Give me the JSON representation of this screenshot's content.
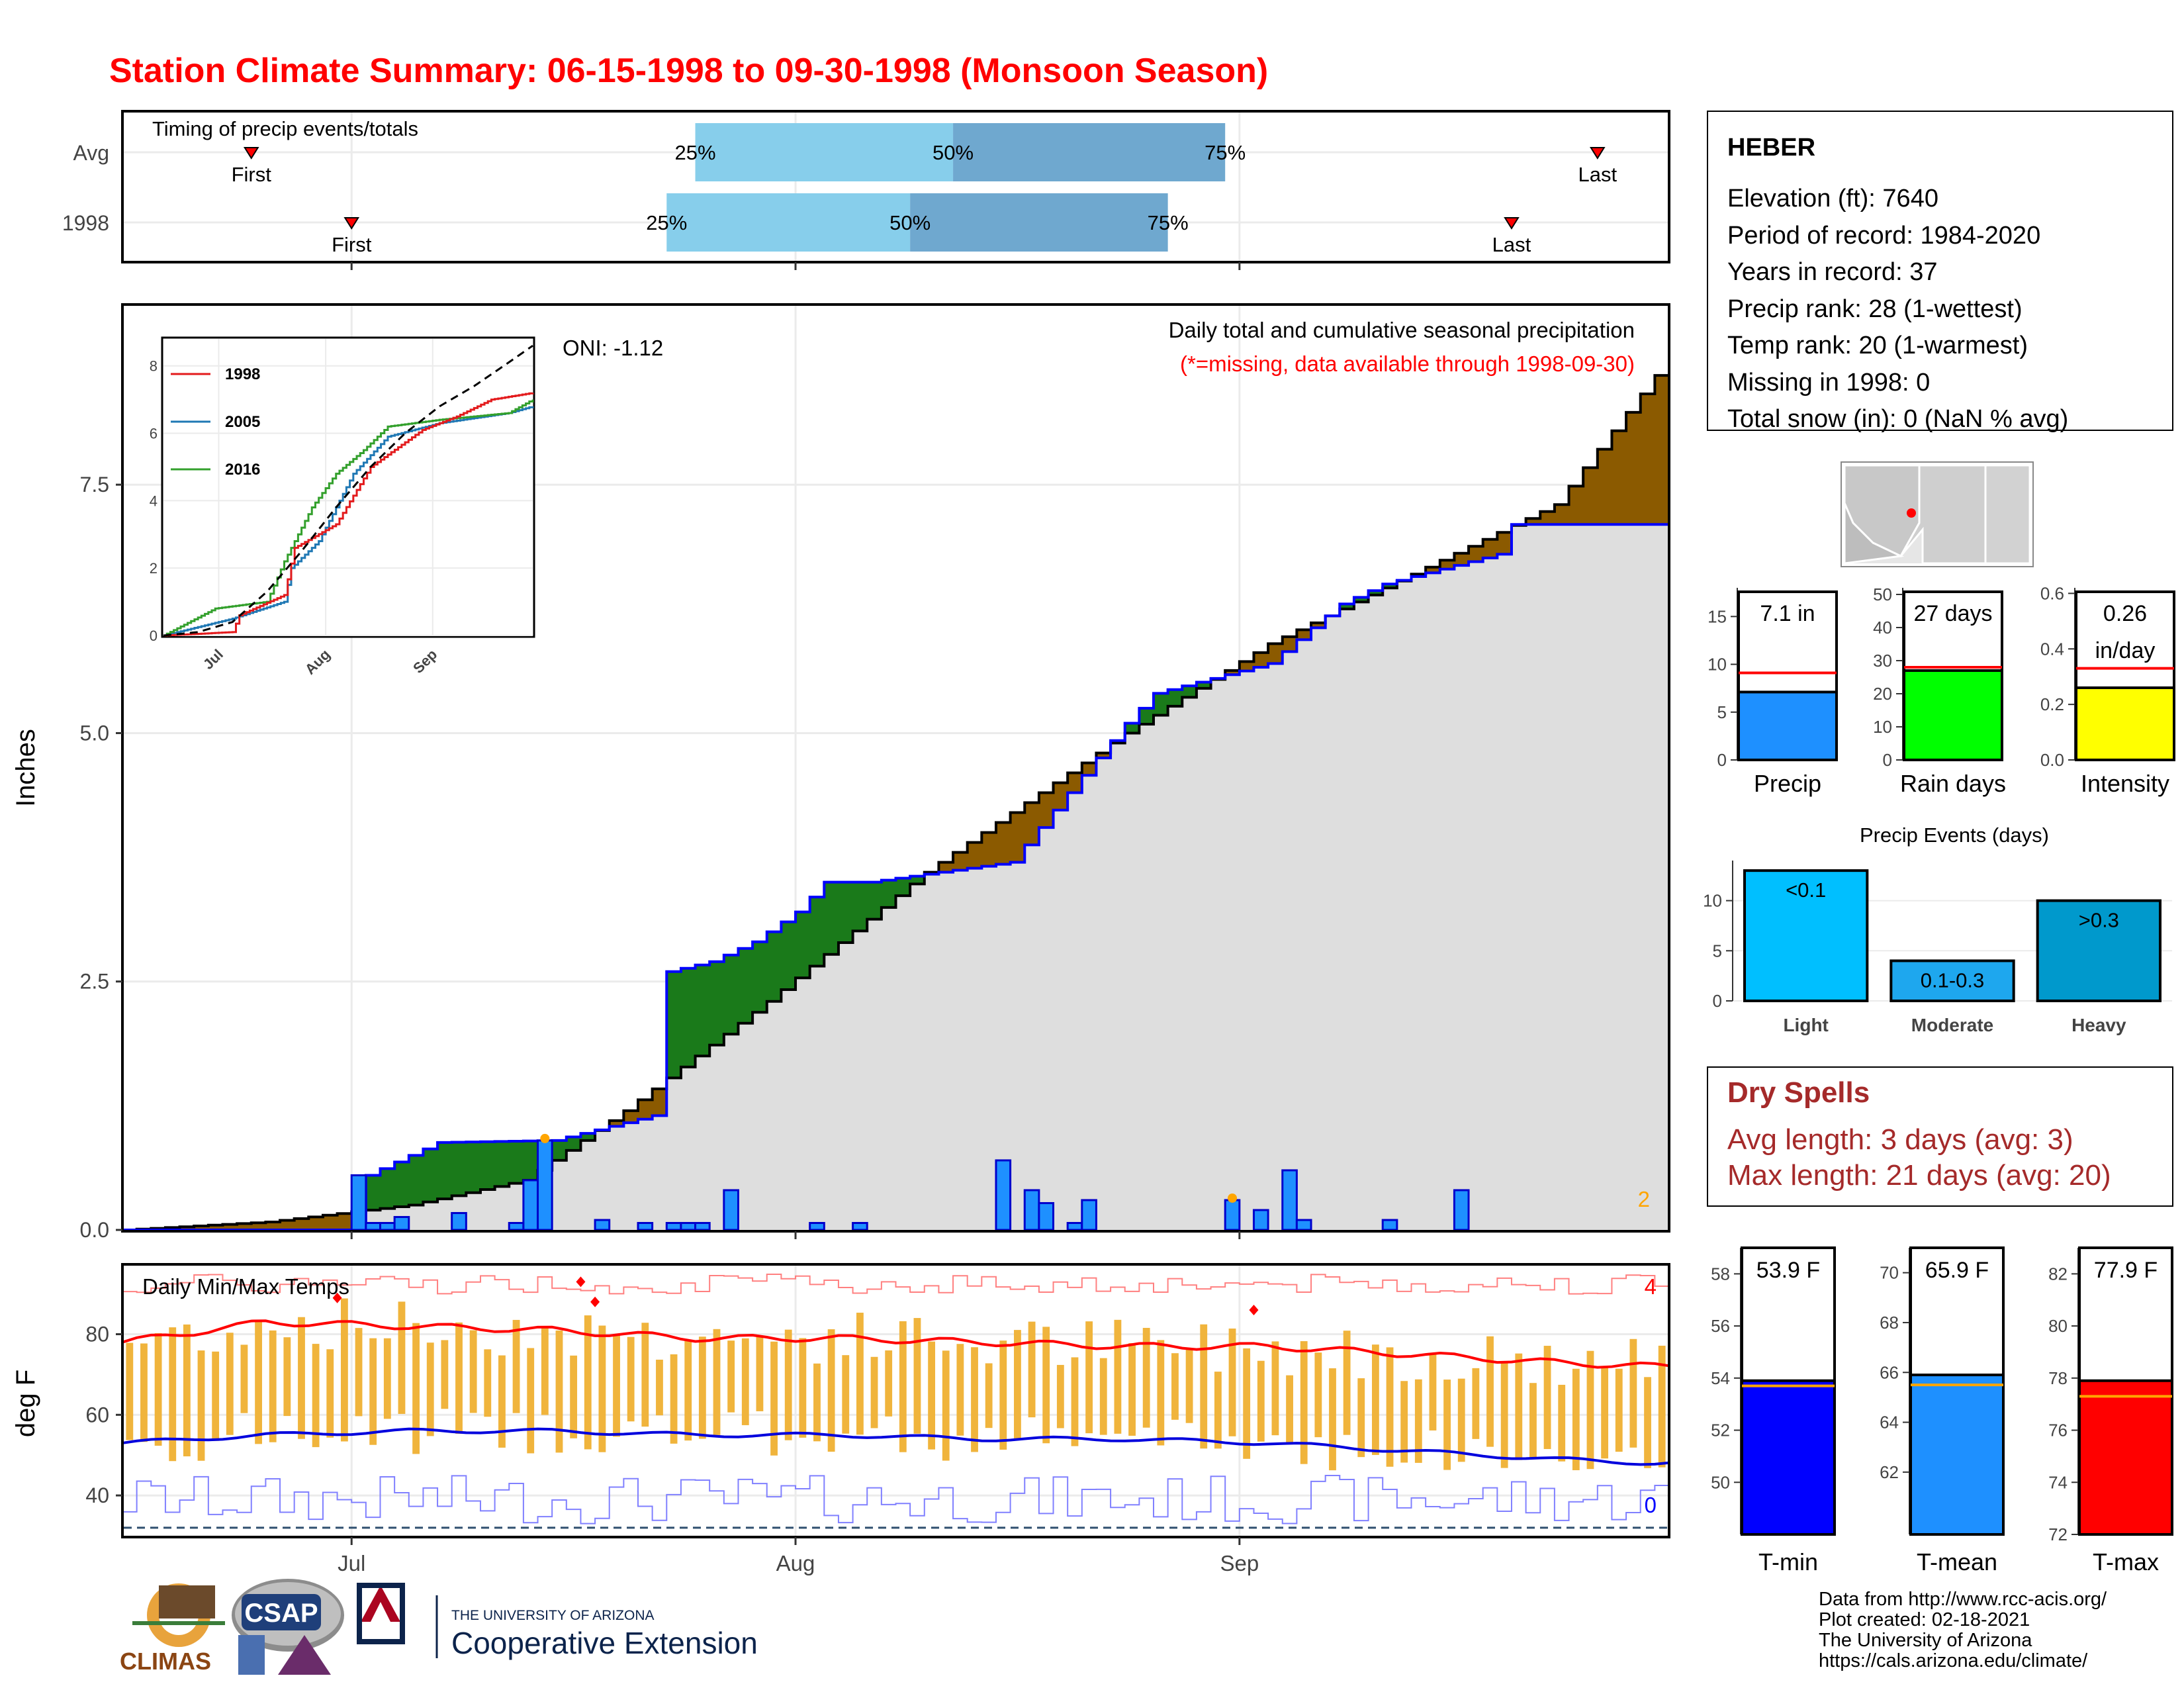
{
  "title": "Station Climate Summary: 06-15-1998 to 09-30-1998 (Monsoon Season)",
  "timing": {
    "label": "Timing of precip events/totals",
    "rows": [
      {
        "name": "Avg",
        "first_day": 9,
        "last_day": 103,
        "q25_day": 40,
        "q50_day": 58,
        "q75_day": 77
      },
      {
        "name": "1998",
        "first_day": 16,
        "last_day": 97,
        "q25_day": 38,
        "q50_day": 55,
        "q75_day": 73
      }
    ],
    "first_label": "First",
    "last_label": "Last",
    "q25_label": "25%",
    "q50_label": "50%",
    "q75_label": "75%"
  },
  "precip_panel": {
    "ylabel": "Inches",
    "yticks": [
      "0.0",
      "2.5",
      "5.0",
      "7.5"
    ],
    "oni": "ONI: -1.12",
    "caption": "Daily total and cumulative seasonal precipitation",
    "caption2": "(*=missing, data available through 1998-09-30)",
    "corner_count": "2"
  },
  "inset": {
    "yticks": [
      "0",
      "2",
      "4",
      "6",
      "8"
    ],
    "xticks": [
      "Jul",
      "Aug",
      "Sep"
    ],
    "legend": [
      {
        "name": "1998",
        "color": "#e31a1c"
      },
      {
        "name": "2005",
        "color": "#1f78b4"
      },
      {
        "name": "2016",
        "color": "#33a02c"
      }
    ]
  },
  "temp_panel": {
    "ylabel": "deg F",
    "label": "Daily Min/Max Temps",
    "yticks": [
      "40",
      "60",
      "80"
    ],
    "count_max": "4",
    "count_min": "0"
  },
  "xaxis": {
    "ticks": [
      "Jul",
      "Aug",
      "Sep"
    ]
  },
  "station": {
    "name": "HEBER",
    "lines": [
      "Elevation (ft): 7640",
      "Period of record: 1984-2020",
      "Years in record: 37",
      "Precip rank: 28 (1-wettest)",
      "Temp rank: 20 (1-warmest)",
      "Missing in 1998: 0",
      "Total snow (in): 0 (NaN % avg)"
    ]
  },
  "summary_bars": [
    {
      "label": "Precip",
      "value_text": "7.1 in",
      "value": 7.1,
      "avg": 9.1,
      "ymax": 18,
      "ticks": [
        "0",
        "5",
        "10",
        "15"
      ],
      "color": "#1e90ff"
    },
    {
      "label": "Rain days",
      "value_text": "27 days",
      "value": 27,
      "avg": 28,
      "ymax": 52,
      "ticks": [
        "0",
        "10",
        "20",
        "30",
        "40",
        "50"
      ],
      "color": "#00ff00"
    },
    {
      "label": "Intensity",
      "value_text": "0.26",
      "value_text2": "in/day",
      "value": 0.26,
      "avg": 0.33,
      "ymax": 0.62,
      "ticks": [
        "0.0",
        "0.2",
        "0.4",
        "0.6"
      ],
      "color": "#ffff00"
    }
  ],
  "events": {
    "title": "Precip Events (days)",
    "yticks": [
      "0",
      "5",
      "10"
    ],
    "bars": [
      {
        "label": "Light",
        "tag": "<0.1",
        "value": 13,
        "color": "#00bfff"
      },
      {
        "label": "Moderate",
        "tag": "0.1-0.3",
        "value": 4,
        "color": "#1ea7ee"
      },
      {
        "label": "Heavy",
        "tag": ">0.3",
        "value": 10,
        "color": "#0099cc"
      }
    ]
  },
  "dry_spells": {
    "title": "Dry Spells",
    "lines": [
      "Avg length: 3 days (avg: 3)",
      "Max length: 21 days (avg: 20)"
    ]
  },
  "temp_bars": [
    {
      "label": "T-min",
      "value_text": "53.9 F",
      "value": 53.9,
      "avg": 53.7,
      "ymin": 48,
      "ymax": 59,
      "ticks": [
        "50",
        "52",
        "54",
        "56",
        "58"
      ],
      "color": "#0000ff"
    },
    {
      "label": "T-mean",
      "value_text": "65.9 F",
      "value": 65.9,
      "avg": 65.5,
      "ymin": 59.5,
      "ymax": 71,
      "ticks": [
        "62",
        "64",
        "66",
        "68",
        "70"
      ],
      "color": "#1e90ff"
    },
    {
      "label": "T-max",
      "value_text": "77.9 F",
      "value": 77.9,
      "avg": 77.3,
      "ymin": 72,
      "ymax": 83,
      "ticks": [
        "72",
        "74",
        "76",
        "78",
        "80",
        "82"
      ],
      "color": "#ff0000"
    }
  ],
  "footer": [
    "Data from http://www.rcc-acis.org/",
    "Plot created: 02-18-2021",
    "The University of Arizona",
    "https://cals.arizona.edu/climate/"
  ],
  "logos": {
    "climas": "CLIMAS",
    "csap": "CSAP",
    "ua_small": "THE UNIVERSITY OF ARIZONA",
    "ua_big": "Cooperative Extension"
  },
  "chart_data": {
    "type": "area",
    "x_start": "1998-06-15",
    "x_end": "1998-09-30",
    "ylim": [
      0,
      9.3
    ],
    "cumulative_avg_knots": [
      [
        0,
        0
      ],
      [
        10,
        0.08
      ],
      [
        20,
        0.25
      ],
      [
        28,
        0.5
      ],
      [
        35,
        1.2
      ],
      [
        45,
        2.3
      ],
      [
        56,
        3.6
      ],
      [
        70,
        5.0
      ],
      [
        80,
        5.9
      ],
      [
        90,
        6.6
      ],
      [
        100,
        7.3
      ],
      [
        107,
        8.6
      ]
    ],
    "cumulative_1998_knots": [
      [
        0,
        0
      ],
      [
        16,
        0
      ],
      [
        17,
        0.55
      ],
      [
        20,
        0.75
      ],
      [
        22,
        0.88
      ],
      [
        30,
        0.9
      ],
      [
        37,
        1.15
      ],
      [
        38,
        2.6
      ],
      [
        41,
        2.7
      ],
      [
        44,
        2.9
      ],
      [
        47,
        3.2
      ],
      [
        49,
        3.5
      ],
      [
        52,
        3.5
      ],
      [
        57,
        3.6
      ],
      [
        62,
        3.7
      ],
      [
        66,
        4.4
      ],
      [
        70,
        5.1
      ],
      [
        72,
        5.4
      ],
      [
        80,
        5.7
      ],
      [
        85,
        6.3
      ],
      [
        88,
        6.5
      ],
      [
        96,
        6.8
      ],
      [
        97,
        7.1
      ],
      [
        107,
        7.1
      ]
    ],
    "daily_bars_1998": [
      [
        16,
        0.55
      ],
      [
        17,
        0.07
      ],
      [
        18,
        0.07
      ],
      [
        19,
        0.13
      ],
      [
        23,
        0.17
      ],
      [
        27,
        0.07
      ],
      [
        28,
        0.5
      ],
      [
        29,
        0.9
      ],
      [
        33,
        0.1
      ],
      [
        36,
        0.07
      ],
      [
        38,
        0.07
      ],
      [
        39,
        0.07
      ],
      [
        40,
        0.07
      ],
      [
        42,
        0.4
      ],
      [
        48,
        0.07
      ],
      [
        51,
        0.07
      ],
      [
        61,
        0.7
      ],
      [
        63,
        0.4
      ],
      [
        64,
        0.27
      ],
      [
        66,
        0.07
      ],
      [
        67,
        0.3
      ],
      [
        77,
        0.3
      ],
      [
        79,
        0.2
      ],
      [
        81,
        0.6
      ],
      [
        82,
        0.1
      ],
      [
        88,
        0.1
      ],
      [
        93,
        0.4
      ]
    ],
    "temps": {
      "tmax_smooth_knots": [
        [
          0,
          78
        ],
        [
          10,
          83
        ],
        [
          20,
          82
        ],
        [
          30,
          81
        ],
        [
          40,
          79
        ],
        [
          50,
          79
        ],
        [
          60,
          78
        ],
        [
          70,
          77
        ],
        [
          80,
          77
        ],
        [
          90,
          75
        ],
        [
          100,
          73
        ],
        [
          107,
          72
        ]
      ],
      "tmin_smooth_knots": [
        [
          0,
          53
        ],
        [
          10,
          55
        ],
        [
          20,
          56
        ],
        [
          30,
          56
        ],
        [
          40,
          55
        ],
        [
          50,
          55
        ],
        [
          60,
          54
        ],
        [
          70,
          54
        ],
        [
          80,
          53
        ],
        [
          90,
          51
        ],
        [
          100,
          49
        ],
        [
          107,
          48
        ]
      ],
      "record_high_band": [
        90,
        95
      ],
      "record_low_band": [
        33,
        45
      ],
      "freeze_line": 32,
      "ylim": [
        30,
        97
      ]
    }
  }
}
